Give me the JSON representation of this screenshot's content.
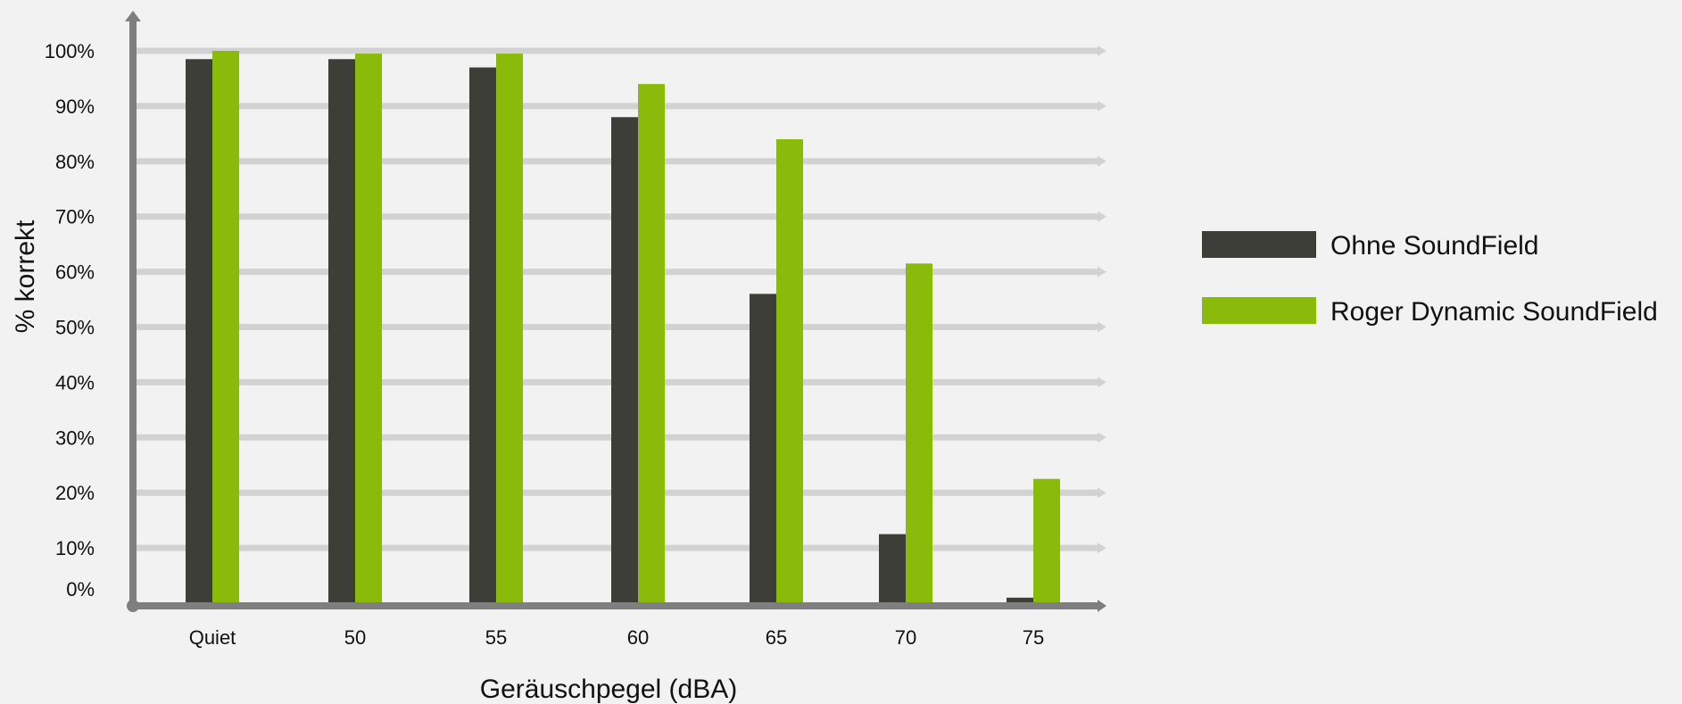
{
  "chart_data": {
    "type": "bar",
    "title": "",
    "xlabel": "Geräuschpegel (dBA)",
    "ylabel": "% korrekt",
    "categories": [
      "Quiet",
      "50",
      "55",
      "60",
      "65",
      "70",
      "75"
    ],
    "series": [
      {
        "name": "Ohne SoundField",
        "color": "#3e3e38",
        "values": [
          98.5,
          98.5,
          97,
          88,
          56,
          12.5,
          1
        ]
      },
      {
        "name": "Roger Dynamic SoundField",
        "color": "#8bbb0a",
        "values": [
          100,
          99.5,
          99.5,
          94,
          84,
          61.5,
          22.5
        ]
      }
    ],
    "ylim": [
      0,
      100
    ],
    "yticks": [
      "0%",
      "10%",
      "20%",
      "30%",
      "40%",
      "50%",
      "60%",
      "70%",
      "80%",
      "90%",
      "100%"
    ],
    "grid": true,
    "legend_position": "right",
    "colors": {
      "grid": "#d2d2d2",
      "axis": "#7f7f7f",
      "background": "#f2f2f2"
    }
  }
}
